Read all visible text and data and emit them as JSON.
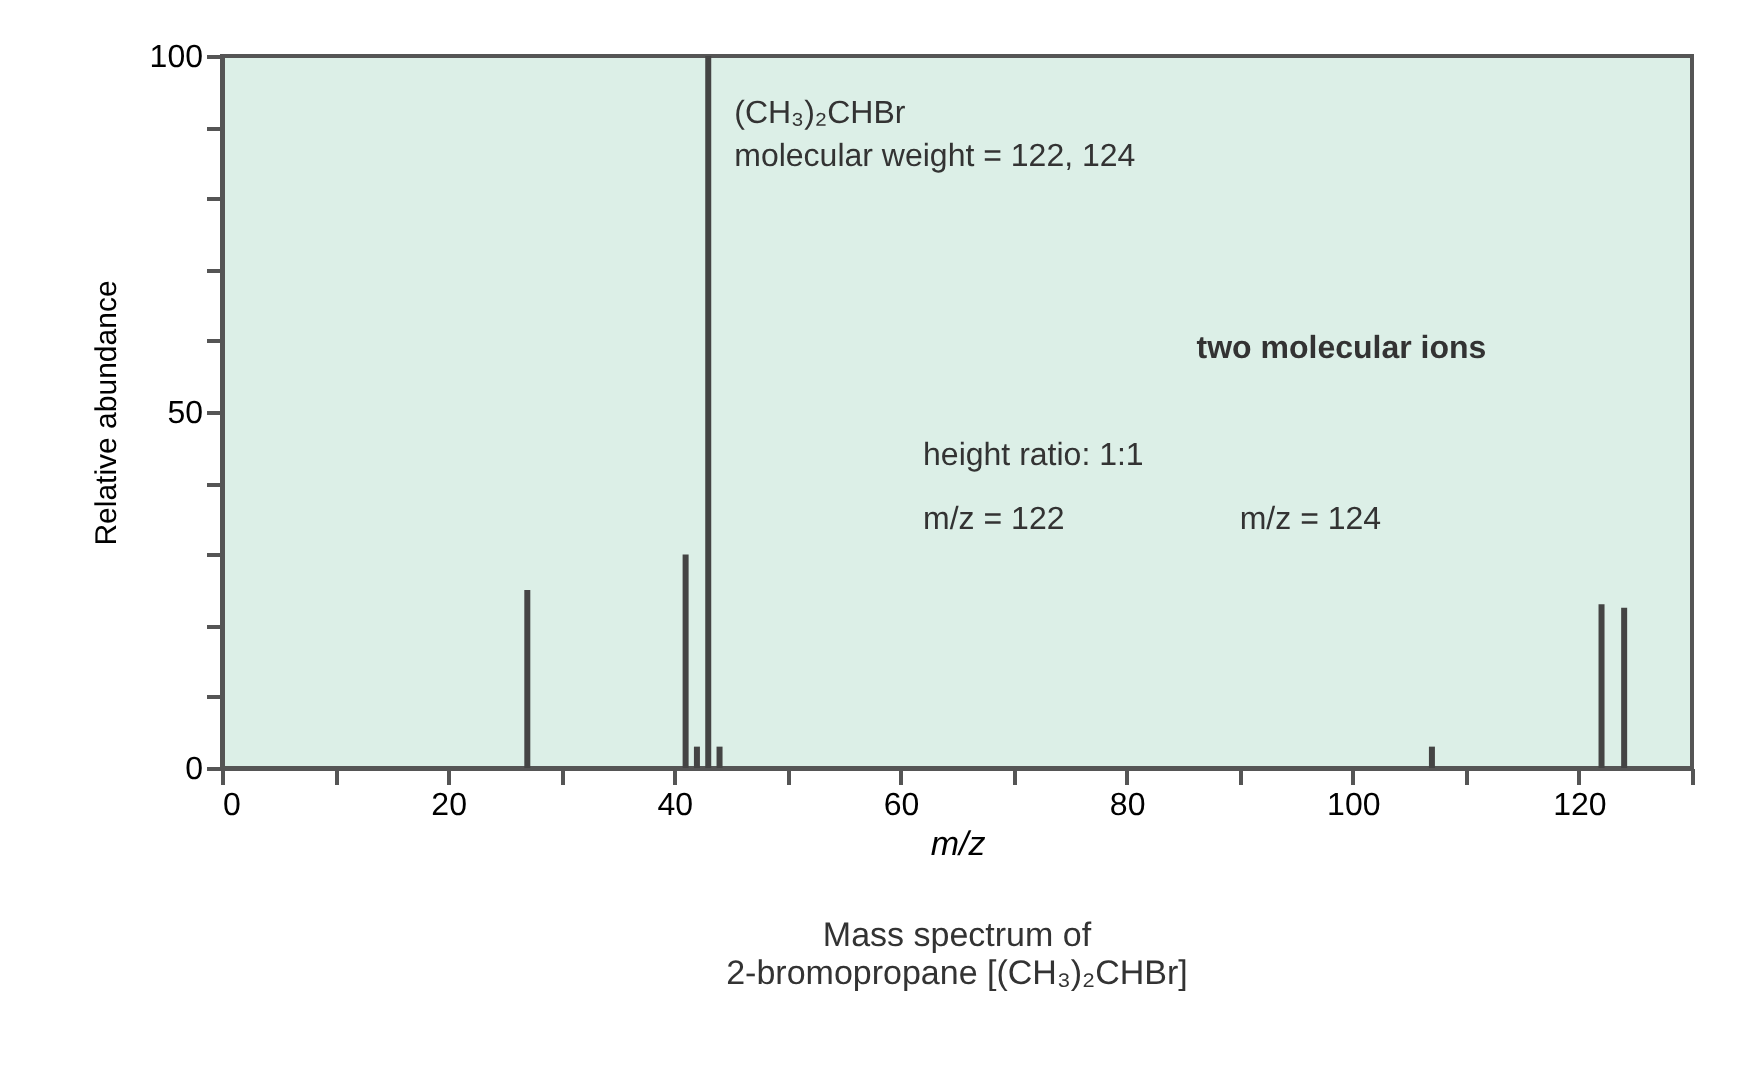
{
  "chart_data": {
    "type": "bar",
    "title": "Mass spectrum of\n2-bromopropane [(CH₃)₂CHBr]",
    "xlabel": "m/z",
    "ylabel": "Relative abundance",
    "x": [
      27,
      41,
      42,
      43,
      44,
      107,
      122,
      124
    ],
    "series": [
      {
        "color": "#444444",
        "values": [
          25,
          30,
          3,
          100,
          3,
          3,
          23,
          22.5
        ]
      }
    ],
    "xlim": [
      0,
      130
    ],
    "xticks": [
      0,
      {
        "value": 10,
        "label": null
      },
      20,
      {
        "value": 30,
        "label": null
      },
      40,
      {
        "value": 50,
        "label": null
      },
      60,
      {
        "value": 70,
        "label": null
      },
      80,
      {
        "value": 90,
        "label": null
      },
      100,
      {
        "value": 110,
        "label": null
      },
      120,
      {
        "value": 130,
        "label": null
      }
    ],
    "ylim": [
      0,
      100
    ],
    "yticks": [
      0,
      {
        "value": 10,
        "label": null
      },
      {
        "value": 20,
        "label": null
      },
      {
        "value": 30,
        "label": null
      },
      {
        "value": 40,
        "label": null
      },
      50,
      {
        "value": 60,
        "label": null
      },
      {
        "value": 70,
        "label": null
      },
      {
        "value": 80,
        "label": null
      },
      {
        "value": 90,
        "label": null
      },
      100
    ],
    "annotations": [
      "(CH₃)₂CHBr",
      "molecular weight = 122, 124",
      "two molecular ions",
      "height ratio: 1:1",
      "m/z = 122",
      "m/z = 124"
    ],
    "grid": false
  }
}
